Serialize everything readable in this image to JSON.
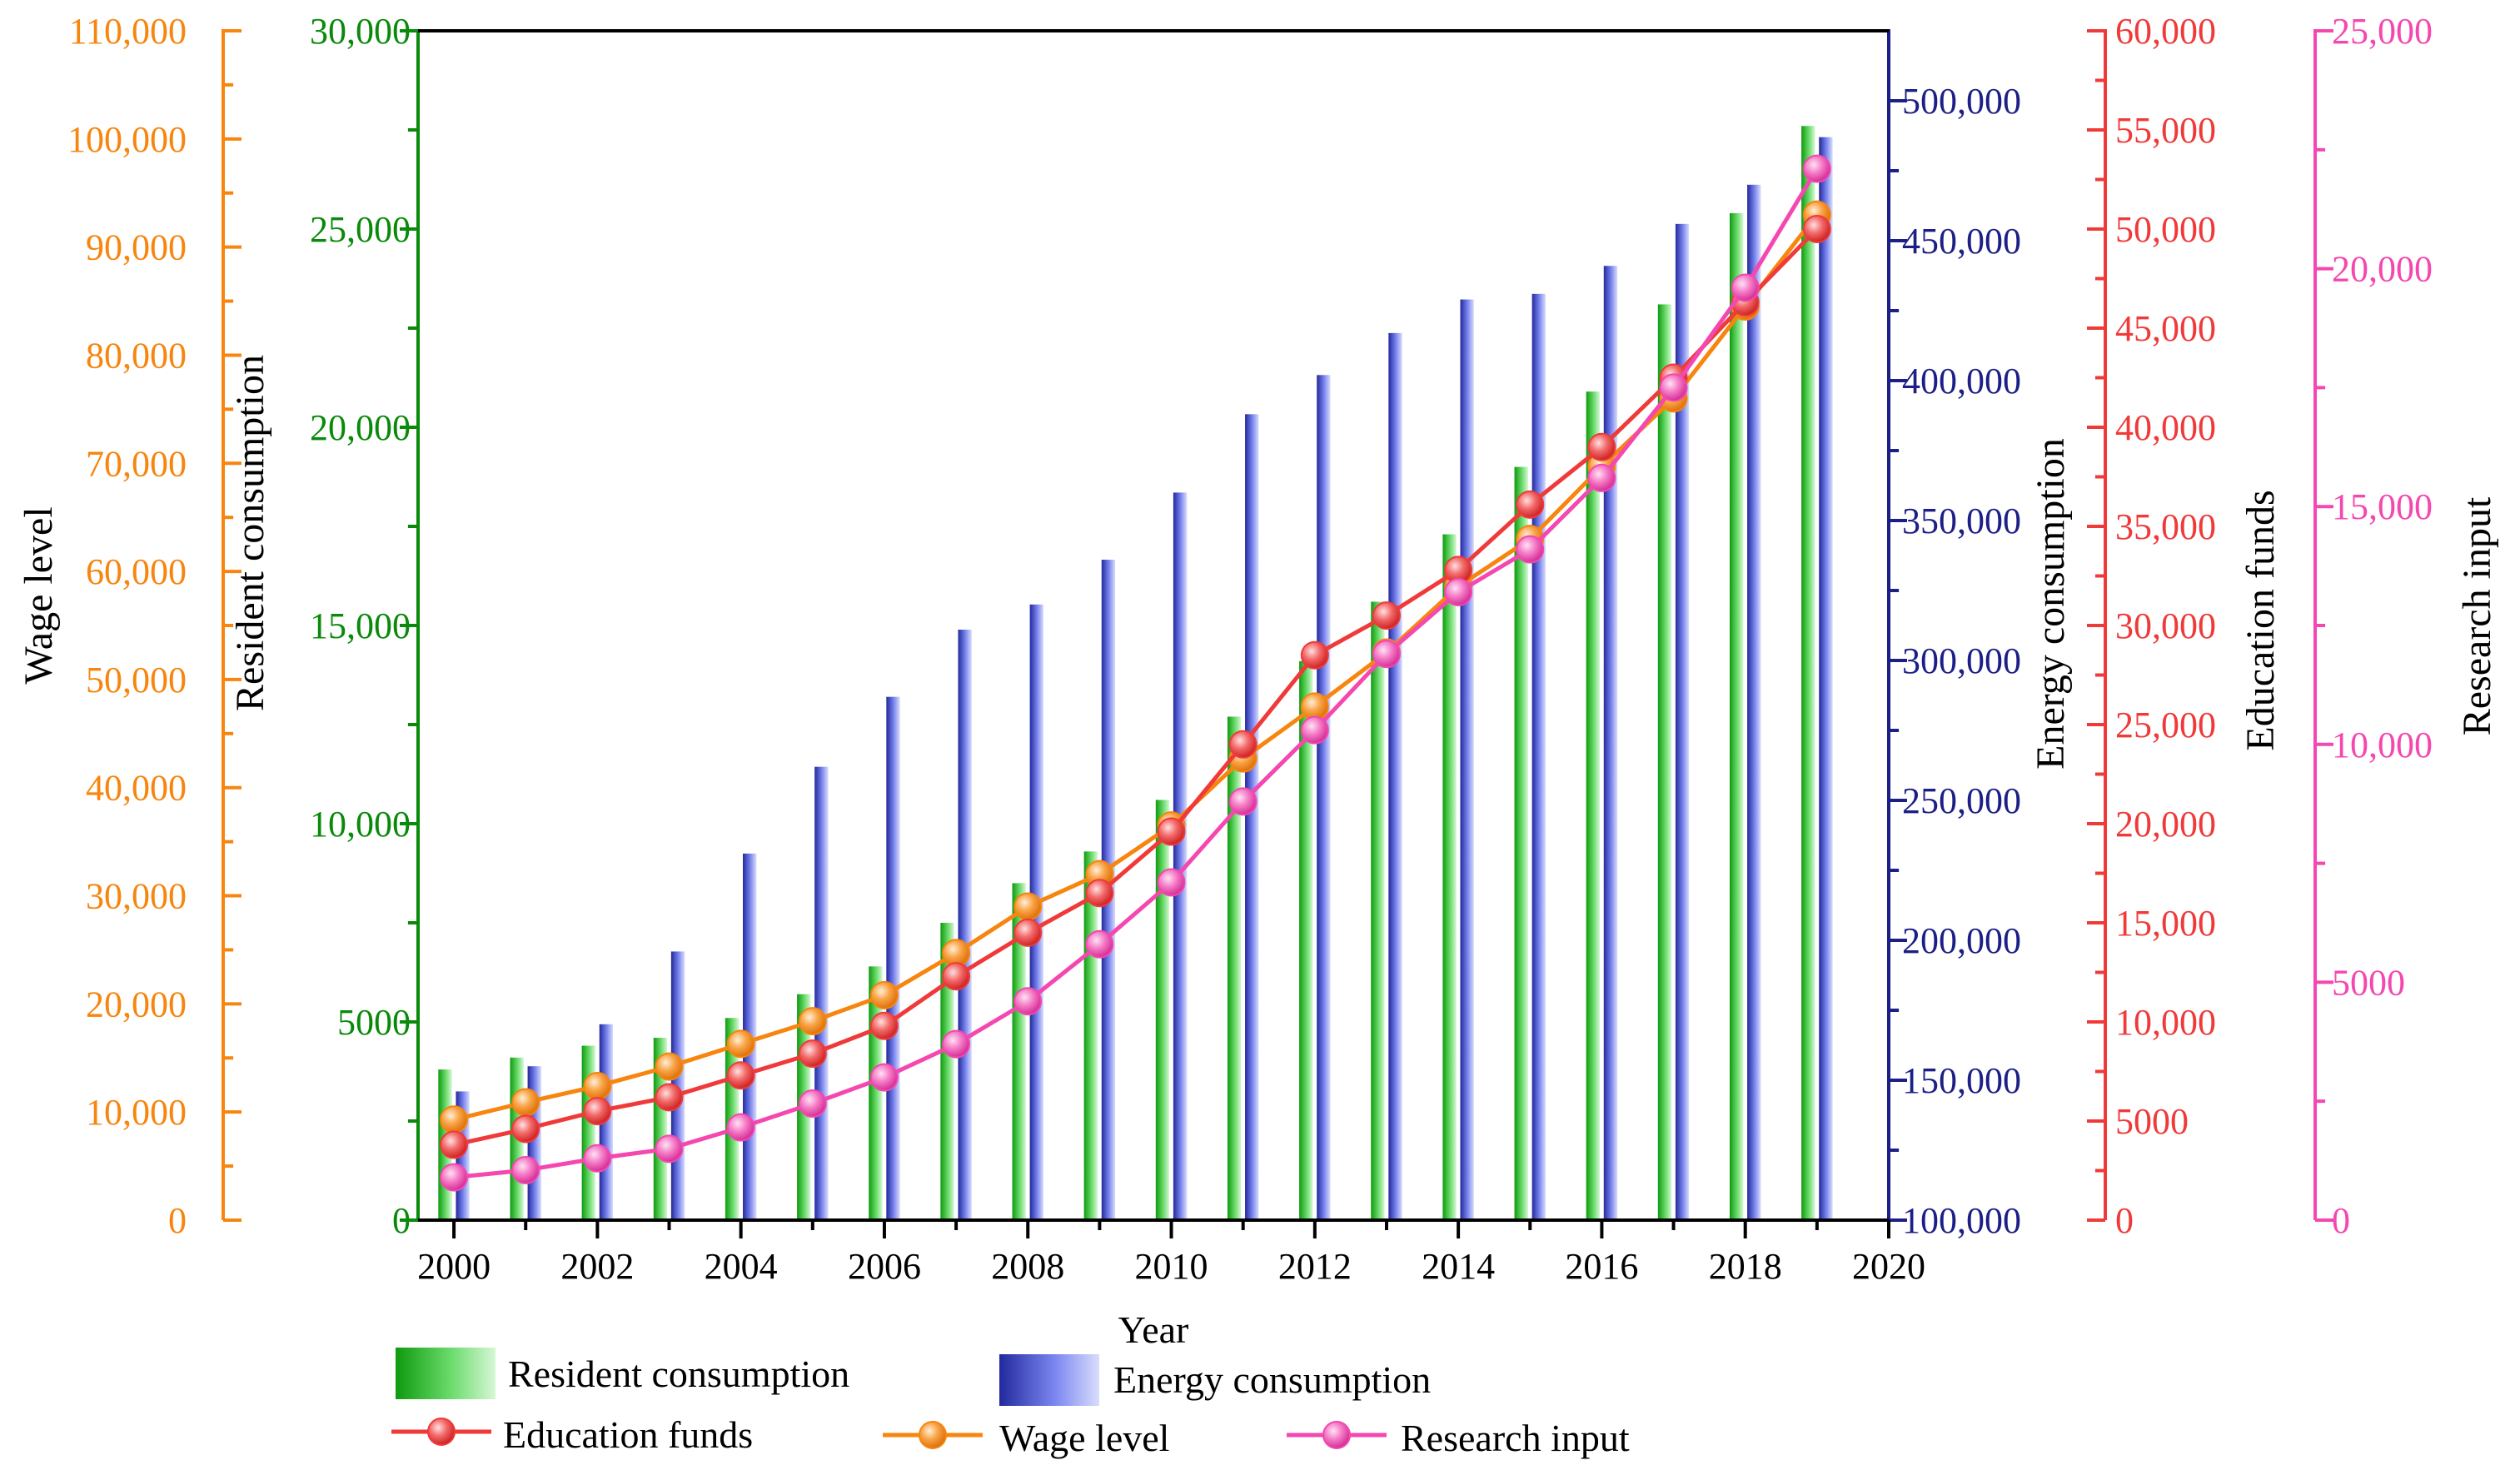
{
  "chart_data": {
    "type": "bar",
    "title": "",
    "xlabel": "Year",
    "x_ticks": [
      "2000",
      "2002",
      "2004",
      "2006",
      "2008",
      "2010",
      "2012",
      "2014",
      "2016",
      "2018",
      "2020"
    ],
    "xlim": [
      1999.5,
      2020
    ],
    "years": [
      2000,
      2001,
      2002,
      2003,
      2004,
      2005,
      2006,
      2007,
      2008,
      2009,
      2010,
      2011,
      2012,
      2013,
      2014,
      2015,
      2016,
      2017,
      2018,
      2019
    ],
    "axes": {
      "wage": {
        "label": "Wage level",
        "color": "#F7850E",
        "ylim": [
          0,
          110000
        ],
        "ticks": [
          "0",
          "10,000",
          "20,000",
          "30,000",
          "40,000",
          "50,000",
          "60,000",
          "70,000",
          "80,000",
          "90,000",
          "100,000",
          "110,000"
        ]
      },
      "resident": {
        "label": "Resident consumption",
        "color": "#0A8A0A",
        "ylim": [
          0,
          30000
        ],
        "ticks": [
          "0",
          "5000",
          "10,000",
          "15,000",
          "20,000",
          "25,000",
          "30,000"
        ]
      },
      "energy": {
        "label": "Energy consumption",
        "color": "#1C1F86",
        "ylim": [
          100000,
          525000
        ],
        "ticks": [
          "100,000",
          "150,000",
          "200,000",
          "250,000",
          "300,000",
          "350,000",
          "400,000",
          "450,000",
          "500,000"
        ]
      },
      "education": {
        "label": "Education funds",
        "color": "#F03A3A",
        "ylim": [
          0,
          60000
        ],
        "ticks": [
          "0",
          "5000",
          "10,000",
          "15,000",
          "20,000",
          "25,000",
          "30,000",
          "35,000",
          "40,000",
          "45,000",
          "50,000",
          "55,000",
          "60,000"
        ]
      },
      "research": {
        "label": "Research input",
        "color": "#F547B0",
        "ylim": [
          0,
          25000
        ],
        "ticks": [
          "0",
          "5000",
          "10,000",
          "15,000",
          "20,000",
          "25,000"
        ]
      }
    },
    "series": [
      {
        "name": "Resident consumption",
        "kind": "bar",
        "axis": "resident",
        "color": "#34C234",
        "values": [
          3800,
          4100,
          4400,
          4600,
          5100,
          5700,
          6400,
          7500,
          8500,
          9300,
          10600,
          12700,
          14100,
          15600,
          17300,
          19000,
          20900,
          23100,
          25400,
          27600
        ]
      },
      {
        "name": "Energy consumption",
        "kind": "bar",
        "axis": "energy",
        "color": "#4655E6",
        "values": [
          146000,
          155000,
          170000,
          196000,
          231000,
          262000,
          287000,
          311000,
          320000,
          336000,
          360000,
          388000,
          402000,
          417000,
          429000,
          431000,
          441000,
          456000,
          470000,
          487000
        ]
      },
      {
        "name": "Education funds",
        "kind": "line",
        "axis": "education",
        "color": "#F03A3A",
        "values": [
          3800,
          4600,
          5500,
          6200,
          7300,
          8400,
          9800,
          12300,
          14500,
          16500,
          19600,
          24000,
          28500,
          30500,
          32800,
          36100,
          39000,
          42500,
          46300,
          50000
        ]
      },
      {
        "name": "Wage level",
        "kind": "line",
        "axis": "wage",
        "color": "#F7850E",
        "values": [
          9300,
          10900,
          12400,
          14200,
          16300,
          18400,
          20800,
          24700,
          29000,
          32000,
          36500,
          42700,
          47500,
          52500,
          58600,
          63000,
          69700,
          76000,
          84500,
          93000
        ]
      },
      {
        "name": "Research input",
        "kind": "line",
        "axis": "research",
        "color": "#F547B0",
        "values": [
          900,
          1050,
          1300,
          1500,
          1950,
          2450,
          3000,
          3700,
          4600,
          5800,
          7100,
          8800,
          10300,
          11900,
          13200,
          14100,
          15600,
          17500,
          19600,
          22100
        ]
      }
    ],
    "legend": [
      {
        "label": "Resident consumption",
        "kind": "bar",
        "color": "#34C234"
      },
      {
        "label": "Energy consumption",
        "kind": "bar",
        "color": "#4655E6"
      },
      {
        "label": "Education funds",
        "kind": "line",
        "color": "#F03A3A"
      },
      {
        "label": "Wage level",
        "kind": "line",
        "color": "#F7850E"
      },
      {
        "label": "Research input",
        "kind": "line",
        "color": "#F547B0"
      }
    ],
    "legend_position": "bottom",
    "grid": false
  }
}
